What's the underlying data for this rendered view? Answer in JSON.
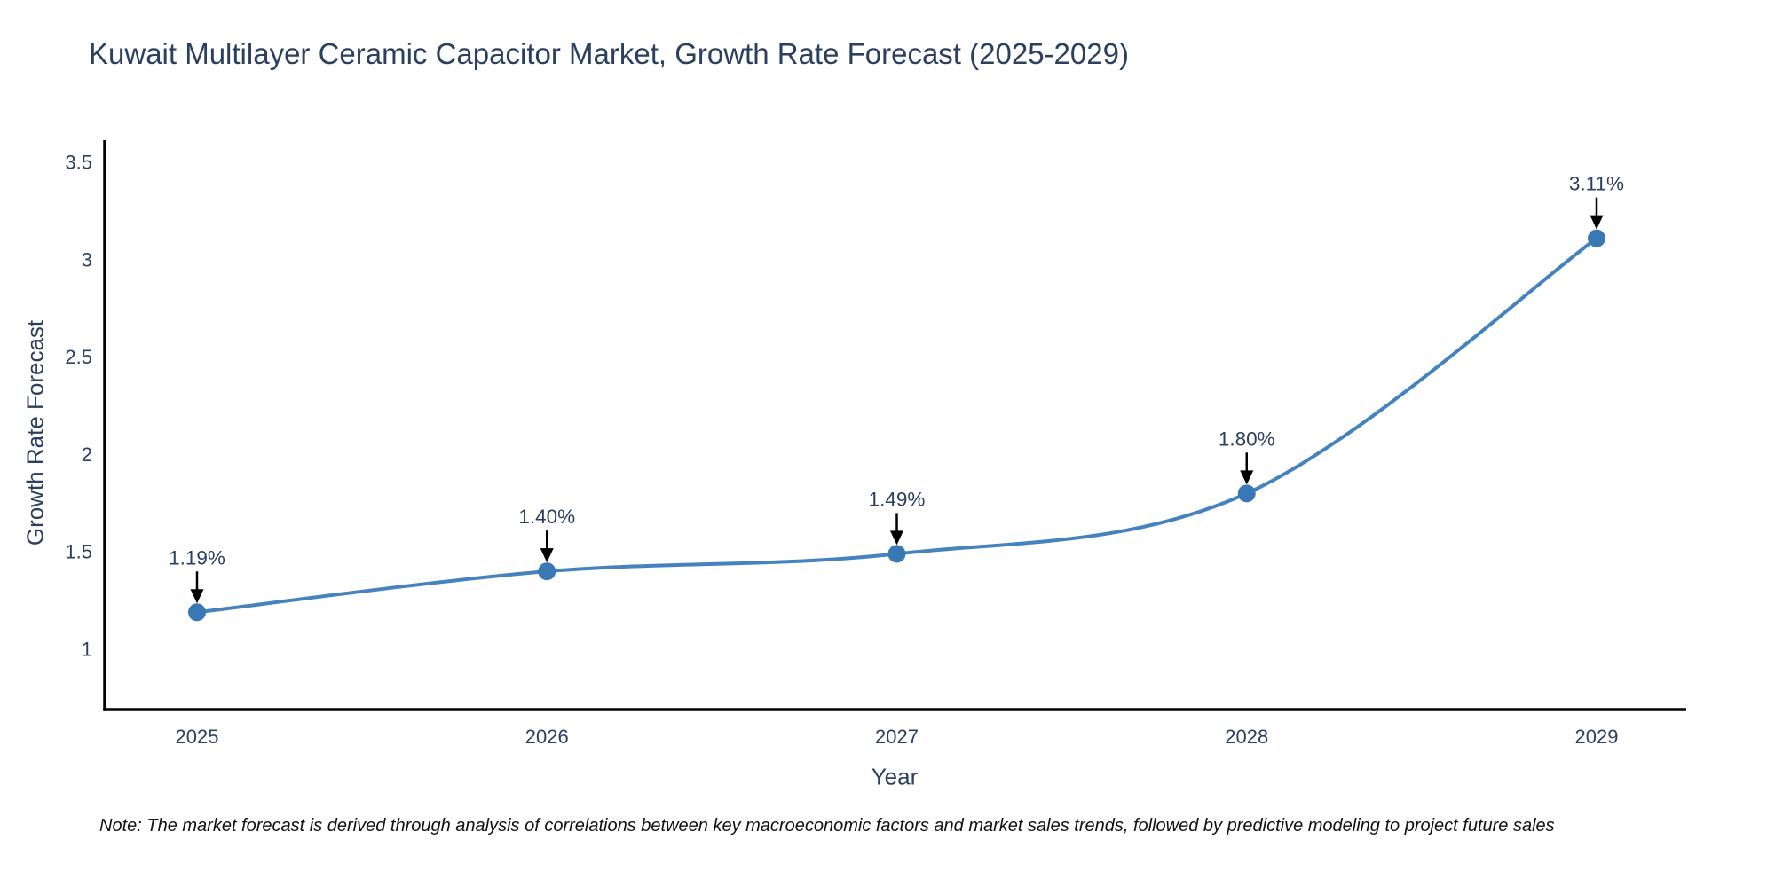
{
  "title": "Kuwait Multilayer Ceramic Capacitor Market, Growth Rate Forecast (2025-2029)",
  "note": "Note: The market forecast is derived through analysis of correlations between key macroeconomic factors and market sales trends, followed by predictive modeling to project future sales",
  "chart_data": {
    "type": "line",
    "title": "Kuwait Multilayer Ceramic Capacitor Market, Growth Rate Forecast (2025-2029)",
    "x": [
      2025,
      2026,
      2027,
      2028,
      2029
    ],
    "values": [
      1.19,
      1.4,
      1.49,
      1.8,
      3.11
    ],
    "point_labels": [
      "1.19%",
      "1.40%",
      "1.49%",
      "1.80%",
      "3.11%"
    ],
    "xlabel": "Year",
    "ylabel": "Growth Rate Forecast",
    "xticks": [
      "2025",
      "2026",
      "2027",
      "2028",
      "2029"
    ],
    "yticks": [
      1,
      1.5,
      2,
      2.5,
      3,
      3.5
    ],
    "ytick_labels": [
      "1",
      "1.5",
      "2",
      "2.5",
      "3",
      "3.5"
    ],
    "ylim": [
      0.69,
      3.61
    ],
    "grid": false,
    "legend": "none",
    "line_shape": "spline",
    "colors": {
      "line": "#4483bd",
      "marker": "#3a78b5",
      "axis": "#000000",
      "text": "#2b3f5e",
      "arrow": "#000000"
    }
  }
}
